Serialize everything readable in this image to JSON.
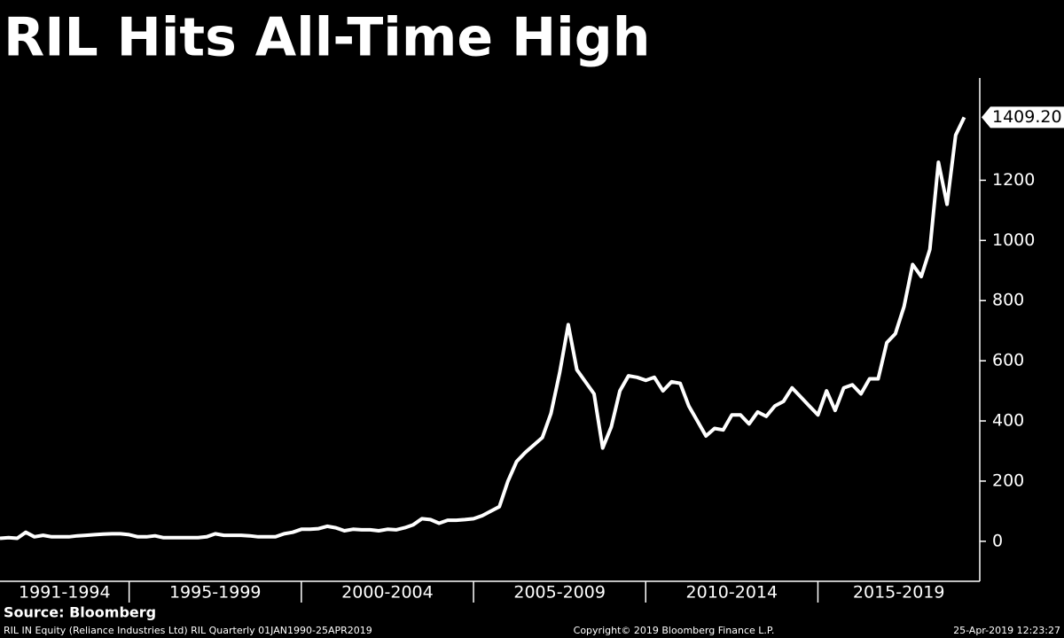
{
  "chart_data": {
    "type": "line",
    "title": "RIL Hits All-Time High",
    "color": "#ffffff",
    "x": [
      1991.25,
      1991.5,
      1991.75,
      1992,
      1992.25,
      1992.5,
      1992.75,
      1993,
      1993.25,
      1993.5,
      1993.75,
      1994,
      1994.25,
      1994.5,
      1994.75,
      1995,
      1995.25,
      1995.5,
      1995.75,
      1996,
      1996.25,
      1996.5,
      1996.75,
      1997,
      1997.25,
      1997.5,
      1997.75,
      1998,
      1998.25,
      1998.5,
      1998.75,
      1999,
      1999.25,
      1999.5,
      1999.75,
      2000,
      2000.25,
      2000.5,
      2000.75,
      2001,
      2001.25,
      2001.5,
      2001.75,
      2002,
      2002.25,
      2002.5,
      2002.75,
      2003,
      2003.25,
      2003.5,
      2003.75,
      2004,
      2004.25,
      2004.5,
      2004.75,
      2005,
      2005.25,
      2005.5,
      2005.75,
      2006,
      2006.25,
      2006.5,
      2006.75,
      2007,
      2007.25,
      2007.5,
      2007.75,
      2008,
      2008.25,
      2008.5,
      2008.75,
      2009,
      2009.25,
      2009.5,
      2009.75,
      2010,
      2010.25,
      2010.5,
      2010.75,
      2011,
      2011.25,
      2011.5,
      2011.75,
      2012,
      2012.25,
      2012.5,
      2012.75,
      2013,
      2013.25,
      2013.5,
      2013.75,
      2014,
      2014.25,
      2014.5,
      2014.75,
      2015,
      2015.25,
      2015.5,
      2015.75,
      2016,
      2016.25,
      2016.5,
      2016.75,
      2017,
      2017.25,
      2017.5,
      2017.75,
      2018,
      2018.25,
      2018.5,
      2018.75,
      2019,
      2019.25
    ],
    "values": [
      10,
      12,
      10,
      30,
      15,
      20,
      15,
      15,
      15,
      18,
      20,
      22,
      24,
      25,
      25,
      22,
      15,
      15,
      18,
      12,
      12,
      12,
      12,
      12,
      15,
      25,
      20,
      20,
      20,
      18,
      15,
      15,
      15,
      25,
      30,
      40,
      40,
      42,
      50,
      45,
      35,
      40,
      38,
      38,
      35,
      40,
      38,
      45,
      55,
      75,
      72,
      60,
      70,
      70,
      72,
      75,
      85,
      100,
      115,
      200,
      265,
      295,
      320,
      345,
      425,
      560,
      720,
      570,
      530,
      490,
      310,
      380,
      500,
      550,
      545,
      535,
      545,
      500,
      530,
      525,
      450,
      400,
      350,
      375,
      370,
      420,
      420,
      390,
      430,
      415,
      450,
      465,
      510,
      480,
      450,
      420,
      500,
      435,
      510,
      520,
      490,
      540,
      540,
      660,
      690,
      780,
      920,
      880,
      970,
      1260,
      1120,
      1350,
      1409.2
    ],
    "last_value_label": "1409.20",
    "xlim": [
      1991.25,
      2019.7
    ],
    "xticks": [
      1995,
      2000,
      2005,
      2010,
      2015
    ],
    "categories": [
      "1991-1994",
      "1995-1999",
      "2000-2004",
      "2005-2009",
      "2010-2014",
      "2015-2019"
    ],
    "ylim": [
      -133,
      1540
    ],
    "yticks": [
      0,
      200,
      400,
      600,
      800,
      1000,
      1200
    ],
    "source": "Source: Bloomberg",
    "footer_left": "RIL IN Equity (Reliance Industries Ltd) RIL  Quarterly 01JAN1990-25APR2019",
    "footer_center": "Copyright© 2019 Bloomberg Finance L.P.",
    "footer_right": "25-Apr-2019 12:23:27"
  }
}
